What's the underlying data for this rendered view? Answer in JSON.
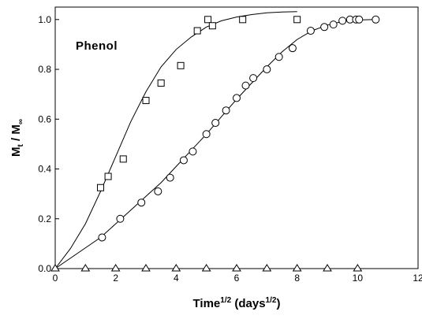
{
  "chart_data": {
    "type": "scatter",
    "annotation": "Phenol",
    "xlabel": {
      "main": "Time",
      "main_sup": "1/2",
      "unit_open": " (days",
      "unit_sup": "1/2",
      "unit_close": ")"
    },
    "ylabel": {
      "m": "M",
      "t": "t",
      "slash": " / M",
      "inf": "∞"
    },
    "xlim": [
      0,
      12
    ],
    "ylim": [
      0,
      1.05
    ],
    "xticks": [
      0,
      2,
      4,
      6,
      8,
      10,
      12
    ],
    "yticks": [
      0.0,
      0.2,
      0.4,
      0.6,
      0.8,
      1.0
    ],
    "xtick_labels": [
      "0",
      "2",
      "4",
      "6",
      "8",
      "10",
      "12"
    ],
    "ytick_labels": [
      "0.0",
      "0.2",
      "0.4",
      "0.6",
      "0.8",
      "1.0"
    ],
    "grid": false,
    "series": [
      {
        "marker": "square",
        "x": [
          1.5,
          1.75,
          2.25,
          3.0,
          3.5,
          4.15,
          4.7,
          5.05,
          5.2,
          6.2,
          8.0
        ],
        "y": [
          0.325,
          0.37,
          0.44,
          0.675,
          0.745,
          0.815,
          0.955,
          1.0,
          0.975,
          1.0,
          1.0
        ],
        "fit": {
          "x": [
            0,
            0.5,
            1.0,
            1.5,
            2.0,
            2.5,
            3.0,
            3.5,
            4.0,
            4.5,
            5.0,
            5.5,
            6.0,
            6.5,
            7.0,
            7.5,
            8.0
          ],
          "y": [
            0.0,
            0.08,
            0.18,
            0.31,
            0.45,
            0.59,
            0.71,
            0.81,
            0.88,
            0.93,
            0.97,
            0.995,
            1.01,
            1.02,
            1.027,
            1.03,
            1.032
          ]
        }
      },
      {
        "marker": "circle",
        "x": [
          1.55,
          2.15,
          2.85,
          3.4,
          3.8,
          4.25,
          4.55,
          5.0,
          5.3,
          5.65,
          6.0,
          6.3,
          6.55,
          7.0,
          7.4,
          7.85,
          8.45,
          8.9,
          9.2,
          9.5,
          9.75,
          9.95,
          10.05,
          10.6
        ],
        "y": [
          0.125,
          0.2,
          0.265,
          0.31,
          0.365,
          0.435,
          0.47,
          0.54,
          0.585,
          0.635,
          0.685,
          0.735,
          0.765,
          0.8,
          0.85,
          0.885,
          0.955,
          0.97,
          0.98,
          0.995,
          1.0,
          1.0,
          1.0,
          1.0
        ],
        "fit": {
          "x": [
            0,
            1.5,
            2.0,
            2.5,
            3.0,
            3.5,
            4.0,
            4.5,
            5.0,
            5.5,
            6.0,
            6.5,
            7.0,
            7.5,
            8.0,
            8.5,
            9.0,
            9.5,
            10.0,
            10.6
          ],
          "y": [
            0.0,
            0.125,
            0.18,
            0.235,
            0.29,
            0.345,
            0.41,
            0.475,
            0.54,
            0.61,
            0.68,
            0.745,
            0.81,
            0.87,
            0.92,
            0.955,
            0.978,
            0.992,
            0.998,
            1.0
          ]
        }
      },
      {
        "marker": "triangle",
        "x": [
          0,
          1,
          2,
          3,
          4,
          5,
          6,
          7,
          8,
          9,
          10
        ],
        "y": [
          0,
          0,
          0,
          0,
          0,
          0,
          0,
          0,
          0,
          0,
          0
        ],
        "fit": {
          "x": [
            0,
            10
          ],
          "y": [
            0,
            0
          ]
        }
      }
    ]
  }
}
